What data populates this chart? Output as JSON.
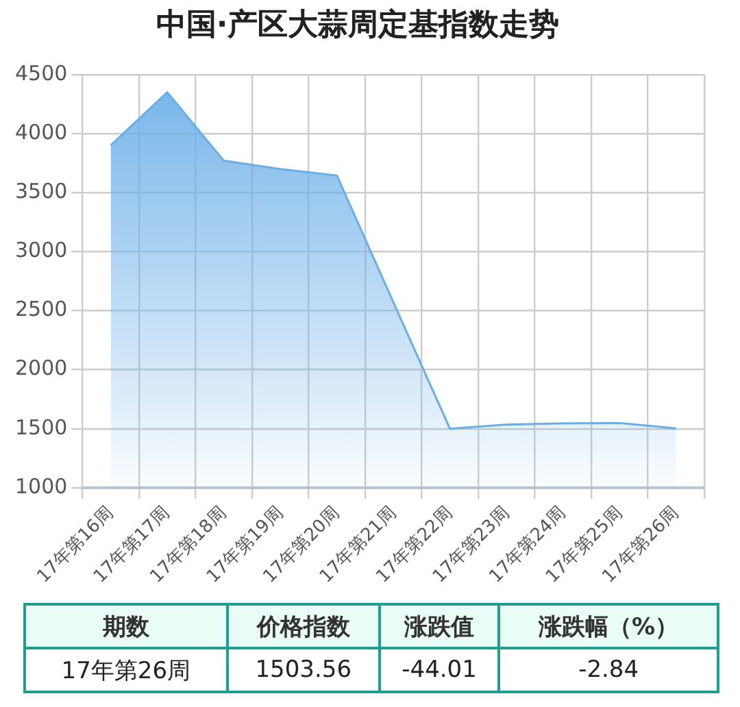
{
  "chart_data": {
    "type": "area",
    "title": "中国·产区大蒜周定基指数走势",
    "categories": [
      "17年第16周",
      "17年第17周",
      "17年第18周",
      "17年第19周",
      "17年第20周",
      "17年第21周",
      "17年第22周",
      "17年第23周",
      "17年第24周",
      "17年第25周",
      "17年第26周"
    ],
    "series": [
      {
        "color": "#6aaee8",
        "values": [
          3900,
          4350,
          3770,
          3700,
          3645,
          2570,
          1500,
          1535,
          1545,
          1548,
          1503.56
        ]
      }
    ],
    "ylim": [
      1000,
      4500
    ],
    "yticks": [
      1000,
      1500,
      2000,
      2500,
      3000,
      3500,
      4000,
      4500
    ],
    "grid": true,
    "legend": false,
    "marker": "none",
    "annotations": [
      "期数",
      "价格指数",
      "涨跌值",
      "涨跌幅（%）",
      "17年第26周",
      "1503.56",
      "-44.01",
      "-2.84"
    ]
  }
}
